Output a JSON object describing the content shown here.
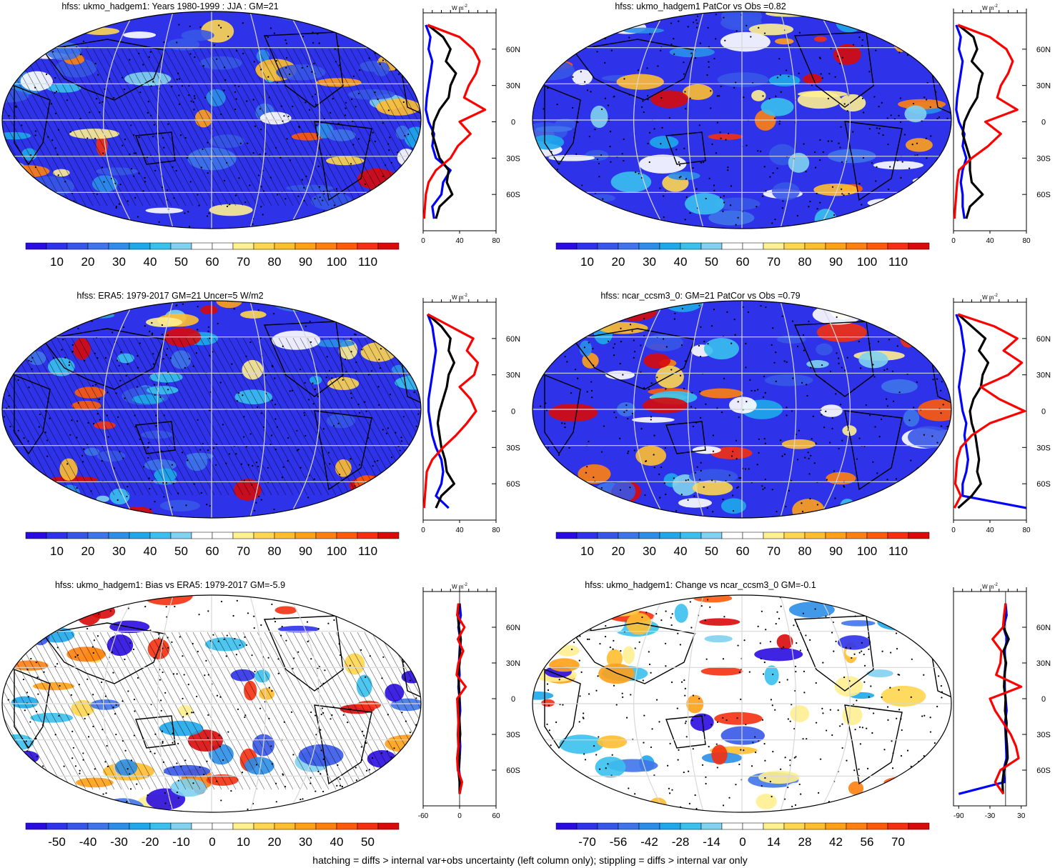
{
  "footer": "hatching = diffs > internal var+obs uncertainty (left column only); stippling = diffs > internal var only",
  "units_label": "W m",
  "units_sup": "-2",
  "lat_ticks": [
    "60N",
    "30N",
    "0",
    "30S",
    "60S"
  ],
  "colors": {
    "abs_scale": [
      "#2a0ce0",
      "#2e32e8",
      "#3756e8",
      "#3f74ea",
      "#2c8ee8",
      "#1ea8ea",
      "#3ac0ee",
      "#80d2f0",
      "#ffffff",
      "#ffffff",
      "#fff090",
      "#ffd650",
      "#ffbe30",
      "#ffa018",
      "#ff8010",
      "#ff5a0a",
      "#f43010",
      "#d80a0a"
    ],
    "diff_scale": [
      "#2a0ce0",
      "#2e32e8",
      "#3756e8",
      "#3f74ea",
      "#2c8ee8",
      "#1ea8ea",
      "#3ac0ee",
      "#80d2f0",
      "#ffffff",
      "#ffffff",
      "#fff090",
      "#ffd650",
      "#ffbe30",
      "#ffa018",
      "#ff8010",
      "#ff5a0a",
      "#f43010",
      "#d80a0a"
    ]
  },
  "chart_data": [
    {
      "type": "heatmap",
      "title": "hfss: ukmo_hadgem1: Years 1980-1999 : JJA : GM=21",
      "colorbar_labels": [
        "10",
        "20",
        "30",
        "40",
        "50",
        "60",
        "70",
        "80",
        "90",
        "100",
        "110"
      ],
      "zonal_mean": {
        "xlim": [
          0,
          80
        ],
        "xticks": [
          "0",
          "40",
          "80"
        ],
        "lat": [
          80,
          70,
          60,
          50,
          40,
          30,
          20,
          10,
          0,
          -10,
          -20,
          -30,
          -40,
          -50,
          -60,
          -70,
          -80
        ],
        "series": [
          {
            "color": "#0000ff",
            "values": [
              3,
              8,
              6,
              10,
              8,
              6,
              4,
              3,
              6,
              12,
              10,
              14,
              30,
              22,
              20,
              10,
              12
            ]
          },
          {
            "color": "#000000",
            "values": [
              5,
              22,
              30,
              25,
              36,
              30,
              28,
              18,
              12,
              10,
              14,
              18,
              28,
              26,
              32,
              18,
              14
            ]
          },
          {
            "color": "#ff0000",
            "values": [
              5,
              40,
              55,
              62,
              58,
              50,
              45,
              68,
              40,
              52,
              38,
              30,
              14,
              6,
              3,
              2,
              1
            ]
          }
        ]
      }
    },
    {
      "type": "heatmap",
      "title": "hfss: ukmo_hadgem1 PatCor vs Obs =0.82",
      "colorbar_labels": [
        "10",
        "20",
        "30",
        "40",
        "50",
        "60",
        "70",
        "80",
        "90",
        "100",
        "110"
      ],
      "zonal_mean": {
        "xlim": [
          0,
          80
        ],
        "xticks": [
          "0",
          "40",
          "80"
        ],
        "lat": [
          80,
          70,
          60,
          50,
          40,
          30,
          20,
          10,
          0,
          -10,
          -20,
          -30,
          -40,
          -50,
          -60,
          -70,
          -80
        ],
        "series": [
          {
            "color": "#0000ff",
            "values": [
              3,
              8,
              6,
              10,
              8,
              6,
              4,
              3,
              6,
              12,
              10,
              14,
              10,
              8,
              10,
              10,
              12
            ]
          },
          {
            "color": "#000000",
            "values": [
              5,
              22,
              26,
              20,
              32,
              28,
              26,
              18,
              12,
              10,
              14,
              18,
              18,
              20,
              32,
              18,
              14
            ]
          },
          {
            "color": "#ff0000",
            "values": [
              5,
              40,
              58,
              65,
              60,
              52,
              48,
              70,
              35,
              52,
              38,
              20,
              6,
              4,
              3,
              2,
              1
            ]
          }
        ]
      }
    },
    {
      "type": "heatmap",
      "title": "hfss: ERA5: 1979-2017 GM=21 Uncer=5 W/m2",
      "colorbar_labels": [
        "10",
        "20",
        "30",
        "40",
        "50",
        "60",
        "70",
        "80",
        "90",
        "100",
        "110"
      ],
      "zonal_mean": {
        "xlim": [
          0,
          80
        ],
        "xticks": [
          "0",
          "40",
          "80"
        ],
        "lat": [
          80,
          70,
          60,
          50,
          40,
          30,
          20,
          10,
          0,
          -10,
          -20,
          -30,
          -40,
          -50,
          -60,
          -70,
          -80
        ],
        "series": [
          {
            "color": "#0000ff",
            "values": [
              5,
              10,
              12,
              14,
              12,
              10,
              8,
              6,
              6,
              8,
              10,
              14,
              20,
              22,
              20,
              14,
              28
            ]
          },
          {
            "color": "#000000",
            "values": [
              5,
              20,
              30,
              28,
              34,
              28,
              26,
              22,
              18,
              16,
              18,
              20,
              24,
              26,
              34,
              20,
              14
            ]
          },
          {
            "color": "#ff0000",
            "values": [
              5,
              30,
              55,
              48,
              60,
              56,
              40,
              52,
              58,
              48,
              36,
              22,
              10,
              4,
              3,
              2,
              1
            ]
          }
        ]
      }
    },
    {
      "type": "heatmap",
      "title": "hfss: ncar_ccsm3_0: GM=21 PatCor vs Obs =0.79",
      "colorbar_labels": [
        "10",
        "20",
        "30",
        "40",
        "50",
        "60",
        "70",
        "80",
        "90",
        "100",
        "110"
      ],
      "zonal_mean": {
        "xlim": [
          0,
          80
        ],
        "xticks": [
          "0",
          "40",
          "80"
        ],
        "lat": [
          80,
          70,
          60,
          50,
          40,
          30,
          20,
          10,
          0,
          -10,
          -20,
          -30,
          -40,
          -50,
          -60,
          -70,
          -80
        ],
        "series": [
          {
            "color": "#0000ff",
            "values": [
              3,
              8,
              10,
              12,
              10,
              8,
              6,
              8,
              10,
              14,
              12,
              14,
              16,
              14,
              10,
              10,
              80
            ]
          },
          {
            "color": "#000000",
            "values": [
              5,
              20,
              35,
              28,
              38,
              32,
              30,
              22,
              18,
              20,
              24,
              26,
              28,
              26,
              30,
              20,
              5
            ]
          },
          {
            "color": "#ff0000",
            "values": [
              5,
              45,
              70,
              55,
              75,
              60,
              30,
              50,
              78,
              40,
              20,
              8,
              4,
              3,
              2,
              8,
              1
            ]
          }
        ]
      }
    },
    {
      "type": "heatmap",
      "title": "hfss: ukmo_hadgem1: Bias vs ERA5: 1979-2017 GM=-5.9",
      "colorbar_labels": [
        "-50",
        "-40",
        "-30",
        "-20",
        "-10",
        "0",
        "10",
        "20",
        "30",
        "40",
        "50"
      ],
      "zonal_mean": {
        "xlim": [
          -60,
          60
        ],
        "xticks": [
          "-60",
          "0",
          "60"
        ],
        "lat": [
          80,
          70,
          60,
          50,
          40,
          30,
          20,
          10,
          0,
          -10,
          -20,
          -30,
          -40,
          -50,
          -60,
          -70,
          -80
        ],
        "series": [
          {
            "color": "#0000ff",
            "values": [
              0,
              2,
              -2,
              1,
              0,
              -1,
              0,
              -2,
              0,
              1,
              -1,
              0,
              1,
              0,
              -1,
              2,
              0
            ]
          },
          {
            "color": "#000000",
            "values": [
              0,
              -3,
              -1,
              2,
              1,
              0,
              -2,
              -1,
              0,
              -1,
              0,
              1,
              -1,
              0,
              -2,
              0,
              0
            ]
          },
          {
            "color": "#ff0000",
            "values": [
              -2,
              -4,
              8,
              -3,
              6,
              -2,
              -5,
              10,
              -4,
              -3,
              -2,
              -3,
              -2,
              -4,
              -3,
              4,
              0
            ]
          }
        ]
      }
    },
    {
      "type": "heatmap",
      "title": "hfss: ukmo_hadgem1: Change vs ncar_ccsm3_0 GM=-0.1",
      "colorbar_labels": [
        "-70",
        "-56",
        "-42",
        "-28",
        "-14",
        "0",
        "14",
        "28",
        "42",
        "56",
        "70"
      ],
      "zonal_mean": {
        "xlim": [
          -100,
          40
        ],
        "xticks": [
          "-90",
          "-30",
          "30"
        ],
        "lat": [
          80,
          70,
          60,
          50,
          40,
          30,
          20,
          10,
          0,
          -10,
          -20,
          -30,
          -40,
          -50,
          -60,
          -70,
          -80
        ],
        "series": [
          {
            "color": "#0000ff",
            "values": [
              0,
              2,
              -4,
              3,
              -2,
              0,
              -2,
              -2,
              0,
              2,
              -1,
              0,
              1,
              2,
              -4,
              -2,
              -90
            ]
          },
          {
            "color": "#000000",
            "values": [
              0,
              -2,
              -4,
              6,
              -4,
              1,
              -2,
              -3,
              0,
              -1,
              2,
              1,
              3,
              4,
              -3,
              -6,
              -5
            ]
          },
          {
            "color": "#ff0000",
            "values": [
              0,
              -3,
              -5,
              -25,
              -8,
              -10,
              -18,
              30,
              -30,
              -20,
              -5,
              10,
              20,
              25,
              -10,
              -20,
              -4
            ]
          }
        ]
      }
    }
  ]
}
